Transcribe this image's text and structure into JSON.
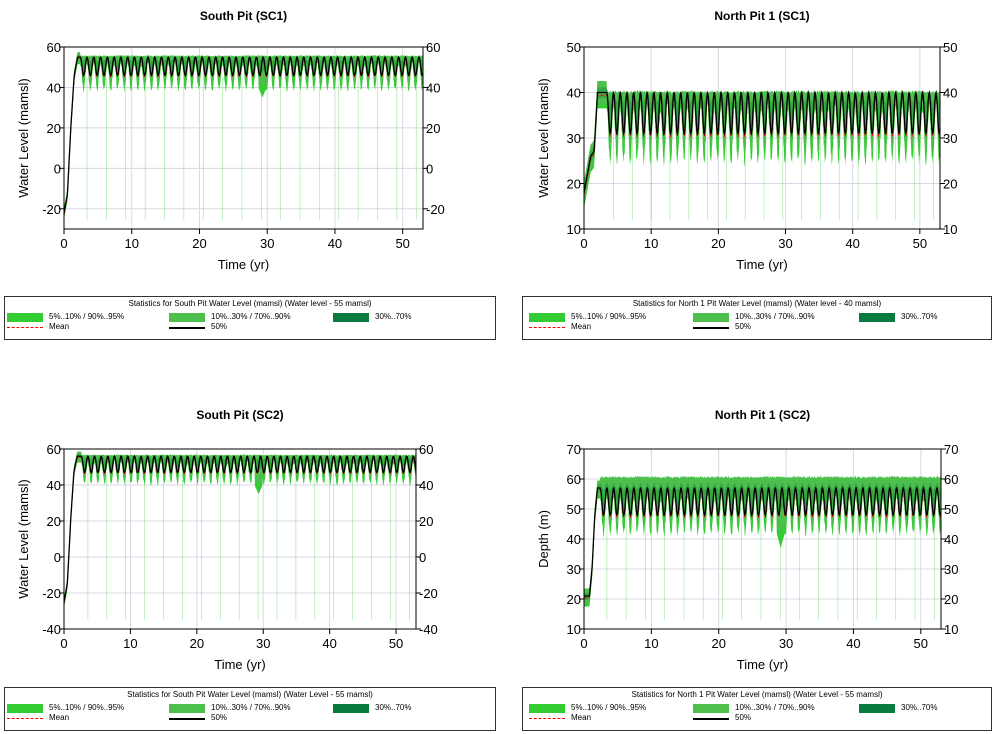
{
  "colors": {
    "band_outer": "#33cc33",
    "band_middle": "#4cbf4c",
    "band_inner": "#0b7a3e",
    "mean": "#ff0000",
    "median": "#000000",
    "grid": "#d8d8e6",
    "axis": "#000000"
  },
  "chart_data": [
    {
      "type": "area",
      "title": "South Pit (SC1)",
      "xlabel": "Time (yr)",
      "ylabel": "Water Level (mamsl)",
      "xlim": [
        0,
        53
      ],
      "ylim": [
        -30,
        60
      ],
      "xticks": [
        0,
        10,
        20,
        30,
        40,
        50
      ],
      "yticks": [
        -20,
        0,
        20,
        40,
        60
      ],
      "right_axis": true,
      "grid": true,
      "legend_position": "bottom",
      "legend": {
        "title": "Statistics for South Pit Water Level (mamsl) (Water level - 55 mamsl)",
        "entries": [
          "5%..10% / 90%..95%",
          "10%..30% / 70%..90%",
          "30%..70%",
          "Mean",
          "50%"
        ]
      },
      "series": [
        {
          "name": "50%",
          "x": [
            0,
            0.5,
            1,
            1.5,
            2,
            3,
            10,
            20,
            29,
            30,
            40,
            50,
            53
          ],
          "values": [
            -22,
            -13,
            20,
            46,
            55,
            55,
            50,
            50,
            48,
            48,
            50,
            50,
            50
          ]
        },
        {
          "name": "Mean",
          "x": [
            0,
            0.5,
            1,
            1.5,
            2,
            3,
            10,
            20,
            29,
            30,
            40,
            50,
            53
          ],
          "values": [
            -22,
            -13,
            20,
            46,
            55,
            55,
            50,
            50,
            47,
            47,
            50,
            50,
            50
          ]
        }
      ],
      "sim": {
        "peak": 55,
        "cycle_low": 46,
        "period": 1,
        "outer_low": 40,
        "outer_high": 56,
        "grow_start": 2.4,
        "rise": [
          [
            0,
            -22
          ],
          [
            0.5,
            -13
          ],
          [
            1,
            20
          ],
          [
            1.5,
            46
          ],
          [
            2,
            55
          ],
          [
            2.4,
            55
          ]
        ],
        "dips": [
          [
            29.3,
            35
          ]
        ],
        "spikes": []
      }
    },
    {
      "type": "area",
      "title": "North Pit 1 (SC1)",
      "xlabel": "Time (yr)",
      "ylabel": "Water Level (mamsl)",
      "xlim": [
        0,
        53
      ],
      "ylim": [
        10,
        50
      ],
      "xticks": [
        0,
        10,
        20,
        30,
        40,
        50
      ],
      "yticks": [
        10,
        20,
        30,
        40,
        50
      ],
      "right_axis": true,
      "grid": true,
      "legend_position": "bottom",
      "legend": {
        "title": "Statistics for North 1 Pit Water Level (mamsl) (Water level - 40 mamsl)",
        "entries": [
          "5%..10% / 90%..95%",
          "10%..30% / 70%..90%",
          "30%..70%",
          "Mean",
          "50%"
        ]
      },
      "series": [
        {
          "name": "50%",
          "x": [
            0,
            1,
            2,
            3,
            10,
            20,
            30,
            40,
            50,
            53
          ],
          "values": [
            19,
            26,
            40,
            40,
            35,
            35,
            35,
            35,
            35,
            35
          ]
        },
        {
          "name": "Mean",
          "x": [
            0,
            1,
            2,
            3,
            10,
            20,
            30,
            40,
            50,
            53
          ],
          "values": [
            19,
            26,
            40,
            40,
            36,
            36,
            36,
            36,
            36,
            36
          ]
        }
      ],
      "sim": {
        "peak": 40,
        "cycle_low": 31,
        "period": 1,
        "outer_low": 26,
        "outer_high": 40.5,
        "grow_start": 3.4,
        "rise": [
          [
            0,
            18
          ],
          [
            0.5,
            22
          ],
          [
            1,
            26
          ],
          [
            1.5,
            27
          ],
          [
            2,
            40
          ],
          [
            3.4,
            40
          ]
        ],
        "dips": [],
        "spikes": [
          [
            3,
            42
          ]
        ]
      }
    },
    {
      "type": "area",
      "title": "South Pit (SC2)",
      "xlabel": "Time (yr)",
      "ylabel": "Water Level (mamsl)",
      "xlim": [
        0,
        53
      ],
      "ylim": [
        -40,
        60
      ],
      "xticks": [
        0,
        10,
        20,
        30,
        40,
        50
      ],
      "yticks": [
        -40,
        -20,
        0,
        20,
        40,
        60
      ],
      "right_axis": true,
      "grid": true,
      "legend_position": "bottom",
      "legend": {
        "title": "Statistics for South Pit Water Level (mamsl) (Water Level - 55 mamsl)",
        "entries": [
          "5%..10% / 90%..95%",
          "10%..30% / 70%..90%",
          "30%..70%",
          "Mean",
          "50%"
        ]
      },
      "series": [
        {
          "name": "50%",
          "x": [
            0,
            0.5,
            1,
            1.5,
            2,
            3,
            10,
            20,
            30,
            40,
            50,
            53
          ],
          "values": [
            -25,
            -15,
            20,
            48,
            56,
            56,
            51,
            51,
            49,
            51,
            51,
            51
          ]
        },
        {
          "name": "Mean",
          "x": [
            0,
            0.5,
            1,
            1.5,
            2,
            3,
            10,
            20,
            30,
            40,
            50,
            53
          ],
          "values": [
            -25,
            -15,
            20,
            48,
            56,
            56,
            51,
            51,
            48,
            51,
            51,
            51
          ]
        }
      ],
      "sim": {
        "peak": 56,
        "cycle_low": 47,
        "period": 1,
        "outer_low": 42,
        "outer_high": 57,
        "grow_start": 2.6,
        "rise": [
          [
            0,
            -25
          ],
          [
            0.5,
            -15
          ],
          [
            1,
            20
          ],
          [
            1.5,
            48
          ],
          [
            2,
            56
          ],
          [
            2.6,
            56
          ]
        ],
        "dips": [
          [
            29.3,
            35
          ]
        ],
        "spikes": []
      }
    },
    {
      "type": "area",
      "title": "North Pit 1 (SC2)",
      "xlabel": "Time (yr)",
      "ylabel": "Depth (m)",
      "xlim": [
        0,
        53
      ],
      "ylim": [
        10,
        70
      ],
      "xticks": [
        0,
        10,
        20,
        30,
        40,
        50
      ],
      "yticks": [
        10,
        20,
        30,
        40,
        50,
        60,
        70
      ],
      "right_axis": true,
      "grid": true,
      "legend_position": "bottom",
      "legend": {
        "title": "Statistics for North 1 Pit Water Level (mamsl) (Water Level - 55 mamsl)",
        "entries": [
          "5%..10% / 90%..95%",
          "10%..30% / 70%..90%",
          "30%..70%",
          "Mean",
          "50%"
        ]
      },
      "series": [
        {
          "name": "50%",
          "x": [
            0,
            1,
            1.5,
            2,
            3,
            10,
            20,
            30,
            40,
            50,
            53
          ],
          "values": [
            21,
            21,
            40,
            57,
            56,
            52,
            52,
            52,
            52,
            52,
            52
          ]
        },
        {
          "name": "Mean",
          "x": [
            0,
            1,
            1.5,
            2,
            3,
            10,
            20,
            30,
            40,
            50,
            53
          ],
          "values": [
            21,
            21,
            40,
            57,
            56,
            52,
            52,
            52,
            52,
            52,
            52
          ]
        }
      ],
      "sim": {
        "peak": 57,
        "cycle_low": 48,
        "period": 1,
        "outer_low": 43,
        "outer_high": 61,
        "grow_start": 2.4,
        "rise": [
          [
            0,
            21
          ],
          [
            0.8,
            21
          ],
          [
            1.2,
            30
          ],
          [
            1.6,
            48
          ],
          [
            2,
            57
          ],
          [
            2.4,
            57
          ]
        ],
        "dips": [
          [
            29.2,
            37
          ]
        ],
        "spikes": []
      }
    }
  ]
}
